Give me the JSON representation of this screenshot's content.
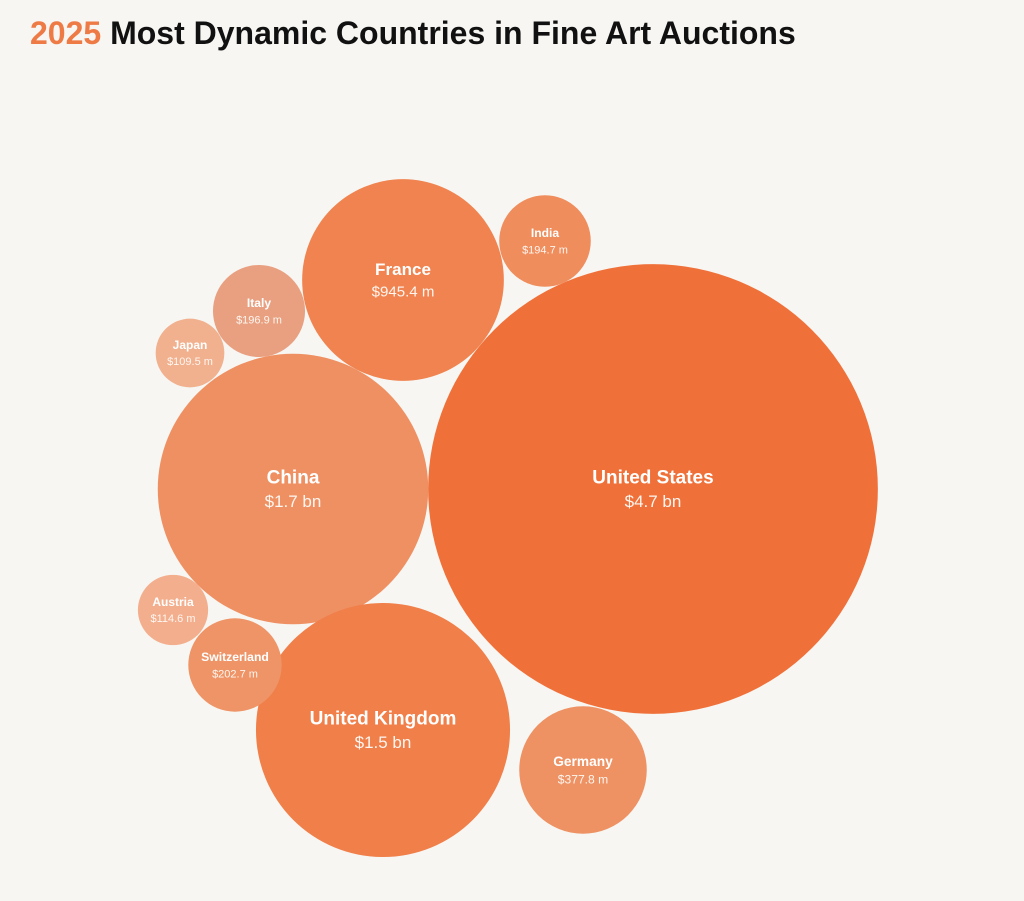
{
  "chart_data": {
    "type": "bubble",
    "title_year": "2025",
    "title": "Most Dynamic Countries in Fine Art Auctions",
    "title_year_color": "#ee7a45",
    "categories": [
      "United States",
      "China",
      "United Kingdom",
      "France",
      "Germany",
      "Switzerland",
      "Italy",
      "India",
      "Austria",
      "Japan"
    ],
    "values": [
      4700,
      1700,
      1500,
      945.4,
      377.8,
      202.7,
      196.9,
      194.7,
      114.6,
      109.5
    ],
    "value_labels": [
      "$4.7 bn",
      "$1.7 bn",
      "$1.5 bn",
      "$945.4 m",
      "$377.8 m",
      "$202.7 m",
      "$196.9 m",
      "$194.7 m",
      "$114.6 m",
      "$109.5 m"
    ],
    "colors": [
      "#f07039",
      "#ef9062",
      "#f07f4a",
      "#f0834f",
      "#ee9163",
      "#ee9466",
      "#e8a081",
      "#ef8d5d",
      "#f3ae8d",
      "#f1b08e"
    ]
  }
}
